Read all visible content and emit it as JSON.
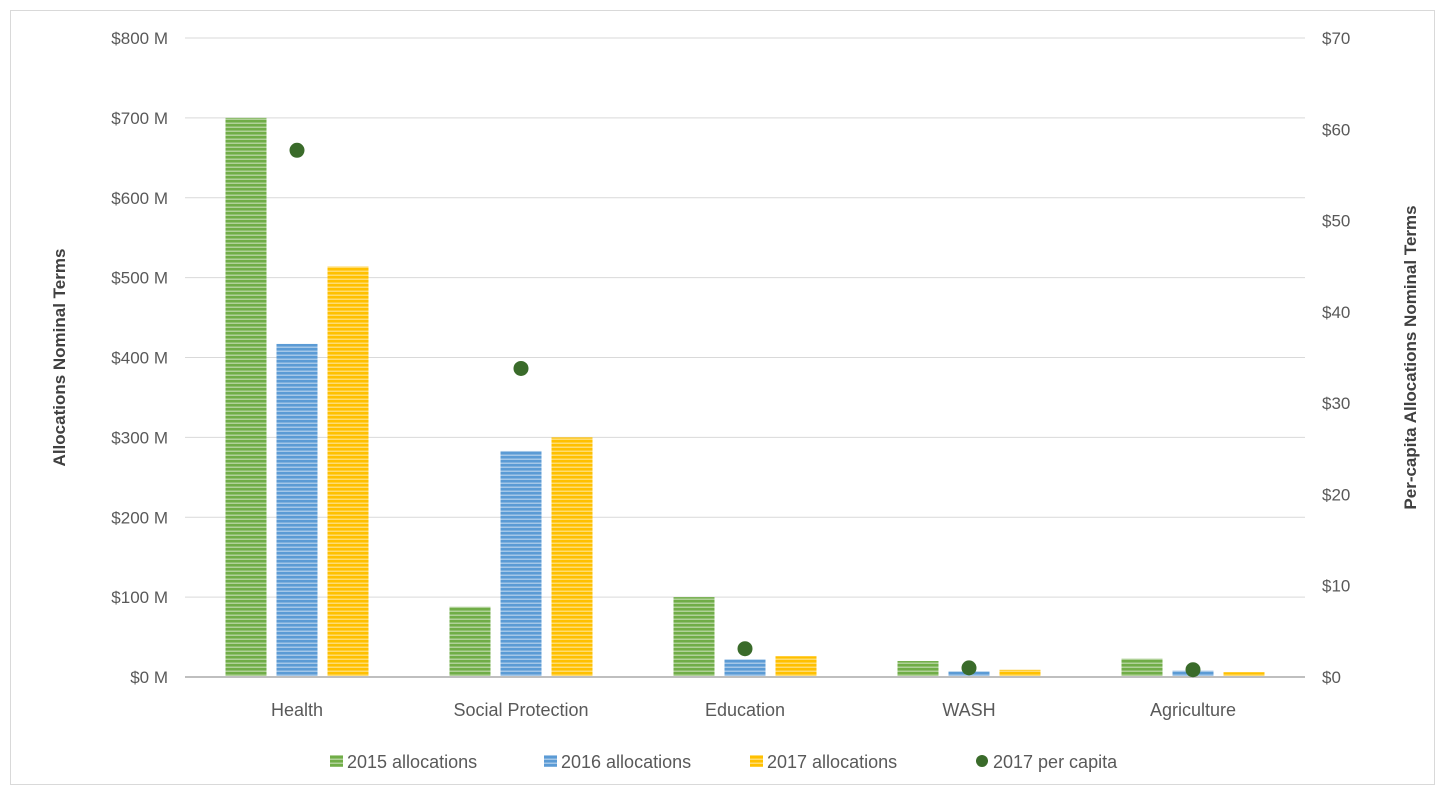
{
  "chart_data": {
    "type": "bar",
    "categories": [
      "Health",
      "Social Protection",
      "Education",
      "WASH",
      "Agriculture"
    ],
    "series": [
      {
        "name": "2015 allocations",
        "axis": "left",
        "color": "#70ad47",
        "values": [
          700,
          88,
          100,
          20,
          23
        ]
      },
      {
        "name": "2016 allocations",
        "axis": "left",
        "color": "#5b9bd5",
        "values": [
          417,
          283,
          22,
          7,
          8
        ]
      },
      {
        "name": "2017 allocations",
        "axis": "left",
        "color": "#ffc000",
        "values": [
          514,
          300,
          26,
          9,
          6
        ]
      },
      {
        "name": "2017 per capita",
        "axis": "right",
        "type": "scatter",
        "color": "#3a6b2a",
        "values": [
          57.7,
          33.8,
          3.1,
          1.0,
          0.8
        ]
      }
    ],
    "xlabel": "",
    "ylabel": "Allocations  Nominal Terms",
    "ylabel_right": "Per-capita Allocations Nominal Terms",
    "ylim": [
      0,
      800
    ],
    "ylim_right": [
      0,
      70
    ],
    "yticks": [
      "$0 M",
      "$100 M",
      "$200 M",
      "$300 M",
      "$400 M",
      "$500 M",
      "$600 M",
      "$700 M",
      "$800 M"
    ],
    "yticks_right": [
      "$0",
      "$10",
      "$20",
      "$30",
      "$40",
      "$50",
      "$60",
      "$70"
    ],
    "grid": true,
    "legend_position": "bottom"
  }
}
